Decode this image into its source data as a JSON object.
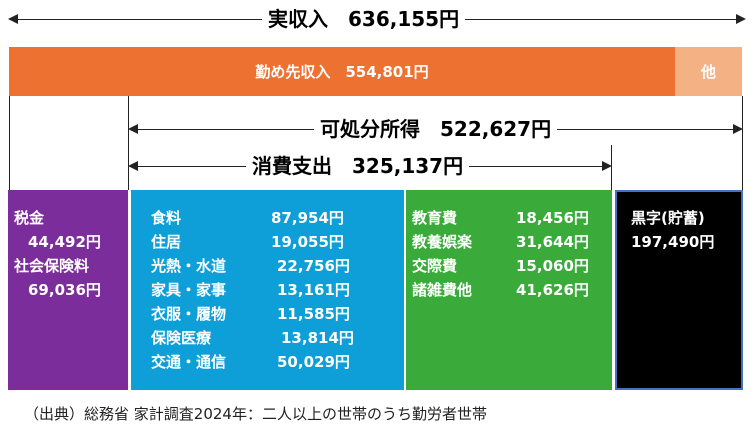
{
  "income": {
    "label": "実収入　636,155円",
    "work_label": "勤め先収入　554,801円",
    "other_label": "他"
  },
  "disposable": {
    "label": "可処分所得　522,627円"
  },
  "consumption": {
    "label": "消費支出　325,137円"
  },
  "tax": {
    "items": [
      {
        "name": "税金",
        "value": "44,492円"
      },
      {
        "name": "社会保険料",
        "value": "69,036円"
      }
    ]
  },
  "spending_a": {
    "items": [
      {
        "name": "食料",
        "value": "87,954円"
      },
      {
        "name": "住居",
        "value": "19,055円"
      },
      {
        "name": "光熱・水道",
        "value": "22,756円"
      },
      {
        "name": "家具・家事",
        "value": "13,161円"
      },
      {
        "name": "衣服・履物",
        "value": "11,585円"
      },
      {
        "name": "保険医療",
        "value": "13,814円"
      },
      {
        "name": "交通・通信",
        "value": "50,029円"
      }
    ]
  },
  "spending_b": {
    "items": [
      {
        "name": "教育費",
        "value": "18,456円"
      },
      {
        "name": "教養娯楽",
        "value": "31,644円"
      },
      {
        "name": "交際費",
        "value": "15,060円"
      },
      {
        "name": "諸雑費他",
        "value": "41,626円"
      }
    ]
  },
  "surplus": {
    "name": "黒字(貯蓄)",
    "value": "197,490円"
  },
  "footer": "（出典）総務省 家計調査2024年：二人以上の世帯のうち勤労者世帯",
  "colors": {
    "work": "#ed7131",
    "other": "#f4b183",
    "tax": "#7b2d9b",
    "spending_a": "#0f9fd8",
    "spending_b": "#3aab3a",
    "surplus": "#000000"
  }
}
